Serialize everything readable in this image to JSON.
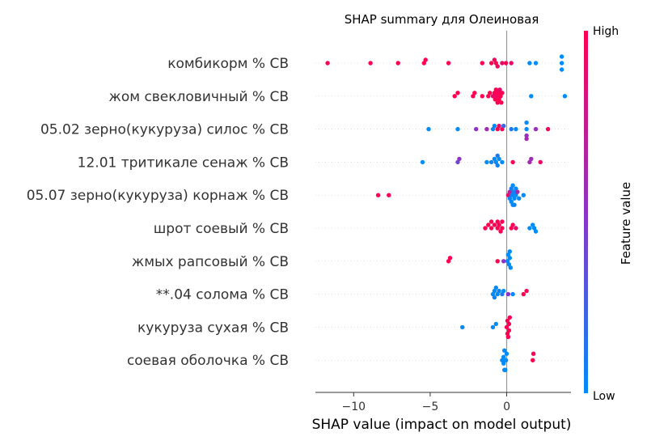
{
  "chart_data": {
    "type": "scatter",
    "title": "SHAP summary для Олеиновая",
    "xlabel": "SHAP value (impact on model output)",
    "xlim": [
      -12.5,
      4.2
    ],
    "xticks": [
      -10,
      -5,
      0
    ],
    "xtick_labels": [
      "−10",
      "−5",
      "0"
    ],
    "colorbar": {
      "title": "Feature value",
      "high_label": "High",
      "low_label": "Low",
      "low_color": "#008bfb",
      "mid_color": "#8c33c6",
      "high_color": "#ff0052"
    },
    "features": [
      {
        "name": "комбикорм % CB",
        "points": [
          {
            "x": -11.7,
            "v": 1
          },
          {
            "x": -8.9,
            "v": 1
          },
          {
            "x": -7.1,
            "v": 1
          },
          {
            "x": -5.4,
            "v": 1
          },
          {
            "x": -5.3,
            "v": 1
          },
          {
            "x": -3.8,
            "v": 1
          },
          {
            "x": -1.6,
            "v": 1
          },
          {
            "x": -1.0,
            "v": 1
          },
          {
            "x": -0.7,
            "v": 1
          },
          {
            "x": -0.6,
            "v": 0.95
          },
          {
            "x": -0.3,
            "v": 0.9
          },
          {
            "x": -0.05,
            "v": 1
          },
          {
            "x": 0.3,
            "v": 0.9
          },
          {
            "x": 1.5,
            "v": 0
          },
          {
            "x": 1.9,
            "v": 0
          },
          {
            "x": 3.6,
            "v": 0
          },
          {
            "x": 3.6,
            "v": 0
          },
          {
            "x": 3.6,
            "v": 0
          },
          {
            "x": -0.8,
            "v": 0.95
          }
        ]
      },
      {
        "name": "жом свекловичный % CB",
        "points": [
          {
            "x": -3.4,
            "v": 1
          },
          {
            "x": -3.2,
            "v": 1
          },
          {
            "x": -2.2,
            "v": 1
          },
          {
            "x": -2.1,
            "v": 1
          },
          {
            "x": -1.6,
            "v": 1
          },
          {
            "x": -1.2,
            "v": 1
          },
          {
            "x": -1.1,
            "v": 1
          },
          {
            "x": -0.9,
            "v": 0.9
          },
          {
            "x": -0.8,
            "v": 1
          },
          {
            "x": -0.75,
            "v": 1
          },
          {
            "x": -0.7,
            "v": 1
          },
          {
            "x": -0.65,
            "v": 0.95
          },
          {
            "x": -0.6,
            "v": 1
          },
          {
            "x": -0.55,
            "v": 1
          },
          {
            "x": -0.5,
            "v": 1
          },
          {
            "x": -0.45,
            "v": 0.9
          },
          {
            "x": -0.4,
            "v": 1
          },
          {
            "x": -0.35,
            "v": 1
          },
          {
            "x": -0.3,
            "v": 1
          },
          {
            "x": 1.6,
            "v": 0
          },
          {
            "x": 3.8,
            "v": 0
          }
        ]
      },
      {
        "name": "05.02 зерно(кукуруза) силос % CB",
        "points": [
          {
            "x": -5.1,
            "v": 0
          },
          {
            "x": -3.2,
            "v": 0
          },
          {
            "x": -2.0,
            "v": 0.5
          },
          {
            "x": -1.3,
            "v": 0.6
          },
          {
            "x": -0.9,
            "v": 0.05
          },
          {
            "x": -0.8,
            "v": 0
          },
          {
            "x": -0.5,
            "v": 0.9
          },
          {
            "x": -0.3,
            "v": 1
          },
          {
            "x": -0.2,
            "v": 0.2
          },
          {
            "x": 0.3,
            "v": 0.1
          },
          {
            "x": 0.6,
            "v": 0
          },
          {
            "x": 1.3,
            "v": 0
          },
          {
            "x": 1.3,
            "v": 0
          },
          {
            "x": 1.3,
            "v": 0.55
          },
          {
            "x": 1.9,
            "v": 0.55
          },
          {
            "x": 2.7,
            "v": 0.95
          },
          {
            "x": 1.3,
            "v": 0.6
          },
          {
            "x": -0.6,
            "v": 1
          }
        ]
      },
      {
        "name": "12.01 тритикале сенаж % CB",
        "points": [
          {
            "x": -5.5,
            "v": 0
          },
          {
            "x": -3.2,
            "v": 0.4
          },
          {
            "x": -3.1,
            "v": 0.5
          },
          {
            "x": -1.3,
            "v": 0
          },
          {
            "x": -1.0,
            "v": 0.05
          },
          {
            "x": -0.8,
            "v": 0
          },
          {
            "x": -0.7,
            "v": 0
          },
          {
            "x": -0.6,
            "v": 0.05
          },
          {
            "x": -0.5,
            "v": 0
          },
          {
            "x": -0.3,
            "v": 0
          },
          {
            "x": 0.4,
            "v": 1
          },
          {
            "x": 1.5,
            "v": 0.6
          },
          {
            "x": 1.6,
            "v": 0.55
          },
          {
            "x": 2.2,
            "v": 0.95
          },
          {
            "x": -0.6,
            "v": 0.1
          }
        ]
      },
      {
        "name": "05.07 зерно(кукуруза) корнаж % CB",
        "points": [
          {
            "x": -8.4,
            "v": 1
          },
          {
            "x": -7.7,
            "v": 1
          },
          {
            "x": 0.1,
            "v": 0.9
          },
          {
            "x": 0.2,
            "v": 0.7
          },
          {
            "x": 0.3,
            "v": 0.1
          },
          {
            "x": 0.35,
            "v": 0
          },
          {
            "x": 0.4,
            "v": 0
          },
          {
            "x": 0.45,
            "v": 0.05
          },
          {
            "x": 0.5,
            "v": 0
          },
          {
            "x": 0.6,
            "v": 0
          },
          {
            "x": 0.7,
            "v": 0.6
          },
          {
            "x": 0.8,
            "v": 0
          },
          {
            "x": 1.1,
            "v": 0
          },
          {
            "x": 0.3,
            "v": 0
          },
          {
            "x": 0.5,
            "v": 0.05
          },
          {
            "x": 0.2,
            "v": 0.05
          },
          {
            "x": 0.6,
            "v": 0
          },
          {
            "x": 0.4,
            "v": 0
          }
        ]
      },
      {
        "name": "шрот соевый % CB",
        "points": [
          {
            "x": -1.4,
            "v": 1
          },
          {
            "x": -1.2,
            "v": 1
          },
          {
            "x": -1.0,
            "v": 1
          },
          {
            "x": -0.8,
            "v": 1
          },
          {
            "x": -0.6,
            "v": 1
          },
          {
            "x": -0.5,
            "v": 1
          },
          {
            "x": -0.4,
            "v": 1
          },
          {
            "x": -0.3,
            "v": 1
          },
          {
            "x": -0.6,
            "v": 1
          },
          {
            "x": -0.3,
            "v": 1
          },
          {
            "x": 0.3,
            "v": 1
          },
          {
            "x": 0.4,
            "v": 1
          },
          {
            "x": 0.6,
            "v": 0.9
          },
          {
            "x": 1.5,
            "v": 0
          },
          {
            "x": 1.7,
            "v": 0
          },
          {
            "x": 1.8,
            "v": 0
          },
          {
            "x": 1.9,
            "v": 0
          },
          {
            "x": -1.0,
            "v": 1
          }
        ]
      },
      {
        "name": "жмых рапсовый % CB",
        "points": [
          {
            "x": -3.8,
            "v": 1
          },
          {
            "x": -3.7,
            "v": 1
          },
          {
            "x": -0.6,
            "v": 1
          },
          {
            "x": -0.2,
            "v": 0.5
          },
          {
            "x": 0.05,
            "v": 0
          },
          {
            "x": 0.15,
            "v": 0
          },
          {
            "x": 0.2,
            "v": 0
          },
          {
            "x": 0.25,
            "v": 0
          },
          {
            "x": 0.1,
            "v": 0
          },
          {
            "x": 0.2,
            "v": 0
          }
        ]
      },
      {
        "name": "**.04 солома % CB",
        "points": [
          {
            "x": -0.9,
            "v": 0
          },
          {
            "x": -0.8,
            "v": 0
          },
          {
            "x": -0.7,
            "v": 0
          },
          {
            "x": -0.6,
            "v": 0
          },
          {
            "x": -0.5,
            "v": 0.05
          },
          {
            "x": -0.3,
            "v": 0.1
          },
          {
            "x": -0.2,
            "v": 0
          },
          {
            "x": 0.1,
            "v": 0.5
          },
          {
            "x": 0.4,
            "v": 0
          },
          {
            "x": 1.1,
            "v": 1
          },
          {
            "x": 1.3,
            "v": 1
          },
          {
            "x": -0.8,
            "v": 0.05
          }
        ]
      },
      {
        "name": "кукуруза сухая % CB",
        "points": [
          {
            "x": -2.9,
            "v": 0
          },
          {
            "x": -0.9,
            "v": 0
          },
          {
            "x": -0.7,
            "v": 0
          },
          {
            "x": 0.0,
            "v": 1
          },
          {
            "x": 0.05,
            "v": 1
          },
          {
            "x": 0.1,
            "v": 1
          },
          {
            "x": 0.15,
            "v": 1
          },
          {
            "x": 0.2,
            "v": 1
          },
          {
            "x": 0.05,
            "v": 1
          },
          {
            "x": 0.1,
            "v": 1
          },
          {
            "x": 0.15,
            "v": 1
          }
        ]
      },
      {
        "name": "соевая оболочка % CB",
        "points": [
          {
            "x": -0.3,
            "v": 0
          },
          {
            "x": -0.2,
            "v": 0
          },
          {
            "x": -0.15,
            "v": 0
          },
          {
            "x": -0.1,
            "v": 0
          },
          {
            "x": -0.05,
            "v": 0
          },
          {
            "x": 0.0,
            "v": 0
          },
          {
            "x": -0.2,
            "v": 0
          },
          {
            "x": -0.1,
            "v": 0
          },
          {
            "x": 1.7,
            "v": 1
          },
          {
            "x": 1.75,
            "v": 1
          },
          {
            "x": -0.15,
            "v": 0
          }
        ]
      }
    ]
  }
}
